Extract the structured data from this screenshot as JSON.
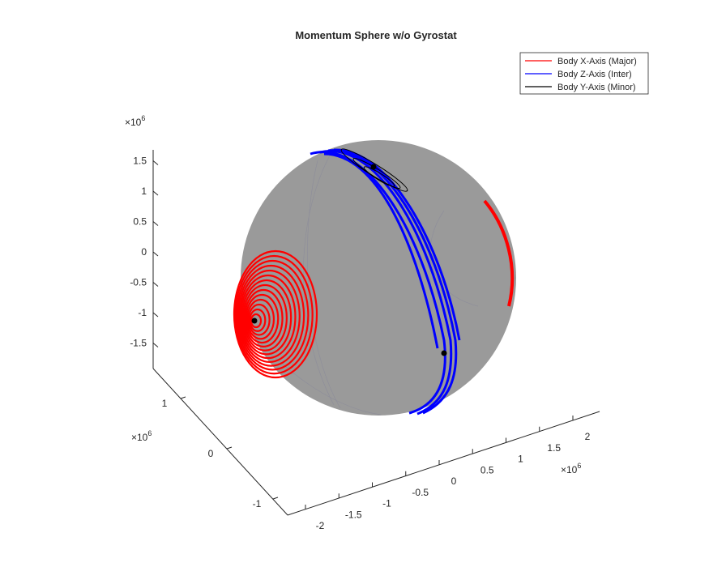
{
  "chart_data": {
    "type": "3d-surface-with-trajectories",
    "title": "Momentum Sphere w/o Gyrostat",
    "legend": {
      "placement": "top-right",
      "entries": [
        {
          "label": "Body X-Axis (Major)",
          "color": "#ff0000"
        },
        {
          "label": "Body Z-Axis (Inter)",
          "color": "#0000ff"
        },
        {
          "label": "Body Y-Axis (Minor)",
          "color": "#000000"
        }
      ]
    },
    "sphere_color": "#9a9a9a",
    "grid": false,
    "axes": {
      "x": {
        "exponent": "6",
        "tick_labels": [
          "-2",
          "-1.5",
          "-1",
          "-0.5",
          "0",
          "0.5",
          "1",
          "1.5",
          "2"
        ],
        "tick_values": [
          -2,
          -1.5,
          -1,
          -0.5,
          0,
          0.5,
          1,
          1.5,
          2
        ]
      },
      "y": {
        "exponent": "6",
        "tick_labels": [
          "-1",
          "0",
          "1"
        ],
        "tick_values": [
          -1,
          0,
          1
        ]
      },
      "z": {
        "exponent": "6",
        "tick_labels": [
          "-1.5",
          "-1",
          "-0.5",
          "0",
          "0.5",
          "1",
          "1.5"
        ],
        "tick_values": [
          -1.5,
          -1,
          -0.5,
          0,
          0.5,
          1,
          1.5
        ]
      }
    },
    "series": [
      {
        "name": "Body X-Axis (Major)",
        "color": "#ff0000"
      },
      {
        "name": "Body Z-Axis (Inter)",
        "color": "#0000ff"
      },
      {
        "name": "Body Y-Axis (Minor)",
        "color": "#000000"
      }
    ]
  }
}
